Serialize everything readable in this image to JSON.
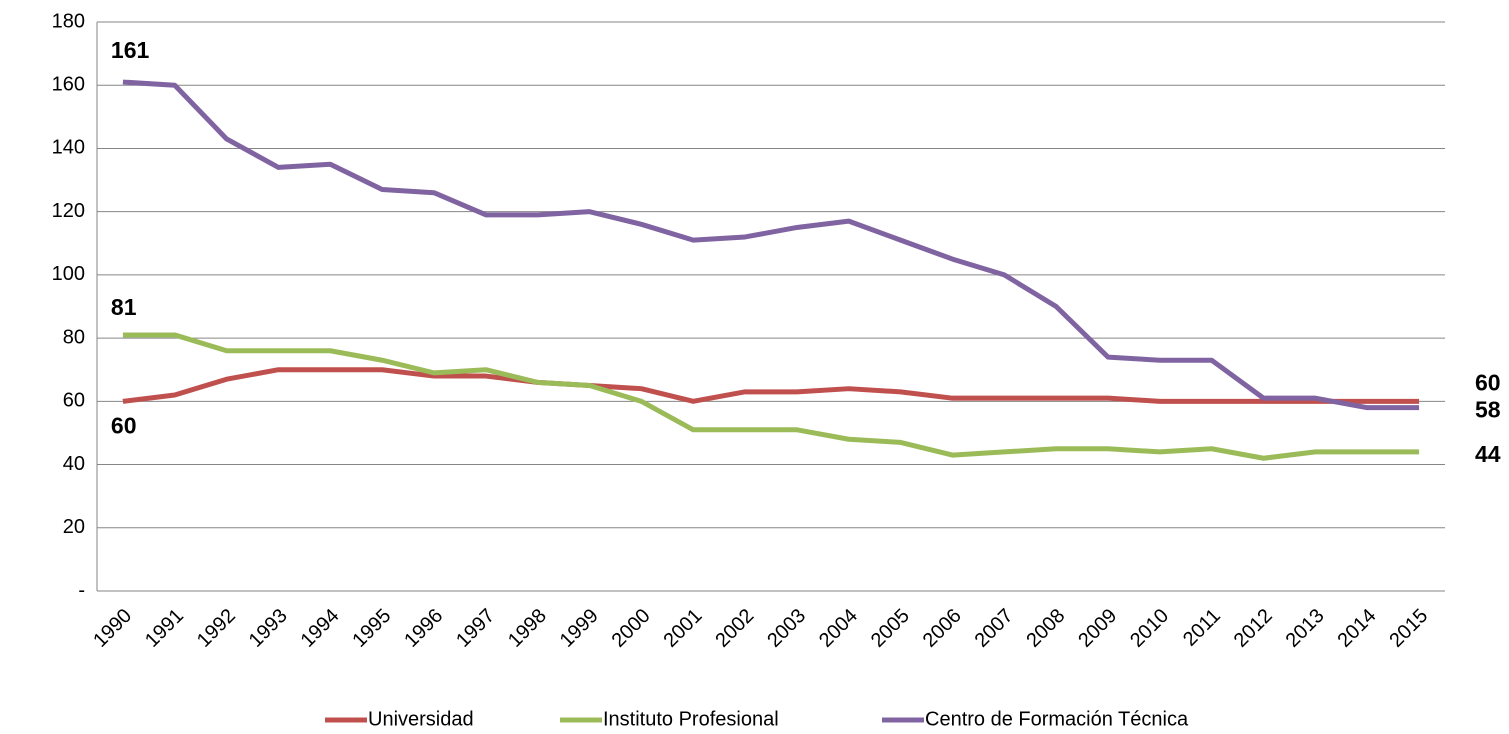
{
  "chart_data": {
    "type": "line",
    "categories": [
      "1990",
      "1991",
      "1992",
      "1993",
      "1994",
      "1995",
      "1996",
      "1997",
      "1998",
      "1999",
      "2000",
      "2001",
      "2002",
      "2003",
      "2004",
      "2005",
      "2006",
      "2007",
      "2008",
      "2009",
      "2010",
      "2011",
      "2012",
      "2013",
      "2014",
      "2015"
    ],
    "series": [
      {
        "name": "Universidad",
        "color": "#c0504d",
        "values": [
          60,
          62,
          67,
          70,
          70,
          70,
          68,
          68,
          66,
          65,
          64,
          60,
          63,
          63,
          64,
          63,
          61,
          61,
          61,
          61,
          60,
          60,
          60,
          60,
          60,
          60
        ]
      },
      {
        "name": "Instituto Profesional",
        "color": "#9bbb59",
        "values": [
          81,
          81,
          76,
          76,
          76,
          73,
          69,
          70,
          66,
          65,
          60,
          51,
          51,
          51,
          48,
          47,
          43,
          44,
          45,
          45,
          44,
          45,
          42,
          44,
          44,
          44
        ]
      },
      {
        "name": "Centro de Formación Técnica",
        "color": "#8064a2",
        "values": [
          161,
          160,
          143,
          134,
          135,
          127,
          126,
          119,
          119,
          120,
          116,
          111,
          112,
          115,
          117,
          111,
          105,
          100,
          90,
          74,
          73,
          73,
          61,
          61,
          58,
          58
        ]
      }
    ],
    "ylim": [
      0,
      180
    ],
    "yticks": [
      {
        "value": 0,
        "label": "-"
      },
      20,
      40,
      60,
      80,
      100,
      120,
      140,
      160,
      180
    ],
    "grid": true
  }
}
